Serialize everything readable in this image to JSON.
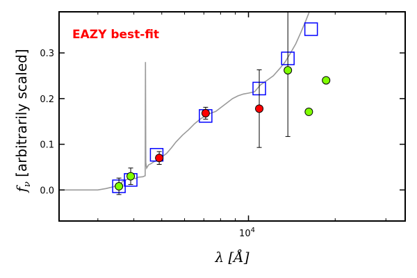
{
  "chart_data": {
    "type": "scatter",
    "xscale": "log",
    "xlim": [
      2200,
      35000
    ],
    "ylim": [
      -0.068,
      0.39
    ],
    "xlabel": "λ [Å]",
    "ylabel_symbol": "f",
    "ylabel_sub": "ν",
    "ylabel_text": "[arbitrarily scaled]",
    "yticks": [
      0.0,
      0.1,
      0.2,
      0.3
    ],
    "ytick_labels": [
      "0.0",
      "0.1",
      "0.2",
      "0.3"
    ],
    "xticks_major": [
      10000
    ],
    "xtick_label_base": "10",
    "xtick_label_exp": "4",
    "xticks_minor": [
      3000,
      4000,
      5000,
      6000,
      7000,
      8000,
      9000,
      20000,
      30000
    ],
    "annotation": {
      "text": "EAZY best-fit",
      "color": "#ff0000",
      "position": "top-left"
    },
    "grid": false,
    "colors": {
      "template": "#999999",
      "model_boxes": "#0000ff",
      "detection": "#ff0000",
      "upper_limit_like": "#7fff00",
      "errorbar": "#000000"
    },
    "template_spectrum": [
      [
        2200,
        0.0
      ],
      [
        3000,
        0.0
      ],
      [
        3200,
        0.003
      ],
      [
        3400,
        0.007
      ],
      [
        3550,
        0.012
      ],
      [
        3650,
        0.018
      ],
      [
        3750,
        0.022
      ],
      [
        3850,
        0.025
      ],
      [
        3950,
        0.027
      ],
      [
        4050,
        0.025
      ],
      [
        4150,
        0.028
      ],
      [
        4300,
        0.029
      ],
      [
        4380,
        0.031
      ],
      [
        4390,
        0.28
      ],
      [
        4400,
        0.06
      ],
      [
        4430,
        0.048
      ],
      [
        4500,
        0.055
      ],
      [
        4600,
        0.058
      ],
      [
        4700,
        0.062
      ],
      [
        4800,
        0.064
      ],
      [
        4900,
        0.066
      ],
      [
        5000,
        0.072
      ],
      [
        5200,
        0.08
      ],
      [
        5400,
        0.092
      ],
      [
        5600,
        0.105
      ],
      [
        5900,
        0.12
      ],
      [
        6200,
        0.132
      ],
      [
        6500,
        0.145
      ],
      [
        6800,
        0.155
      ],
      [
        7100,
        0.163
      ],
      [
        7400,
        0.168
      ],
      [
        7700,
        0.172
      ],
      [
        8000,
        0.18
      ],
      [
        8400,
        0.19
      ],
      [
        8800,
        0.2
      ],
      [
        9200,
        0.206
      ],
      [
        9600,
        0.21
      ],
      [
        10000,
        0.212
      ],
      [
        10500,
        0.215
      ],
      [
        11000,
        0.23
      ],
      [
        11600,
        0.24
      ],
      [
        12200,
        0.25
      ],
      [
        12800,
        0.265
      ],
      [
        13400,
        0.28
      ],
      [
        14000,
        0.3
      ],
      [
        14600,
        0.32
      ],
      [
        15200,
        0.345
      ],
      [
        15800,
        0.37
      ],
      [
        16500,
        0.4
      ]
    ],
    "model_points": [
      {
        "x": 3550,
        "y": 0.008
      },
      {
        "x": 3900,
        "y": 0.022
      },
      {
        "x": 4800,
        "y": 0.077
      },
      {
        "x": 7100,
        "y": 0.162
      },
      {
        "x": 10900,
        "y": 0.222
      },
      {
        "x": 13700,
        "y": 0.288
      },
      {
        "x": 16500,
        "y": 0.352
      }
    ],
    "observed_points": [
      {
        "x": 3550,
        "y": 0.008,
        "err": 0.018,
        "color": "green"
      },
      {
        "x": 3900,
        "y": 0.03,
        "err": 0.018,
        "color": "green"
      },
      {
        "x": 4900,
        "y": 0.07,
        "err": 0.014,
        "color": "red"
      },
      {
        "x": 7100,
        "y": 0.168,
        "err": 0.013,
        "color": "red"
      },
      {
        "x": 10900,
        "y": 0.178,
        "err": 0.085,
        "color": "red"
      },
      {
        "x": 13700,
        "y": 0.262,
        "err": 0.145,
        "color": "green"
      },
      {
        "x": 16200,
        "y": 0.171,
        "err": null,
        "color": "green"
      },
      {
        "x": 18600,
        "y": 0.24,
        "err": null,
        "color": "green"
      }
    ]
  }
}
